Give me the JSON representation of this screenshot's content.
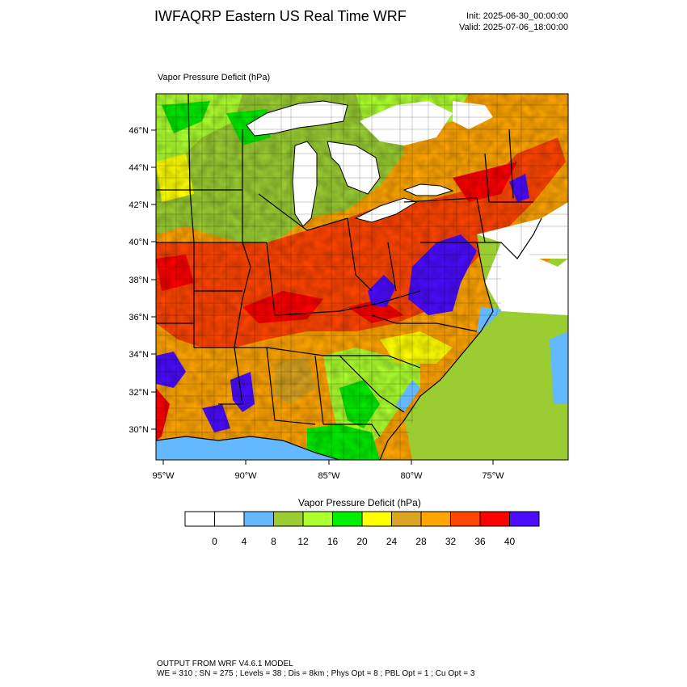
{
  "header": {
    "title": "IWFAQRP Eastern US Real Time WRF",
    "init": "Init: 2025-06-30_00:00:00",
    "valid": "Valid: 2025-07-06_18:00:00"
  },
  "map": {
    "field_title": "Vapor Pressure Deficit   (hPa)",
    "lat_labels": [
      "46°N",
      "44°N",
      "42°N",
      "40°N",
      "38°N",
      "36°N",
      "34°N",
      "32°N",
      "30°N"
    ],
    "lon_labels": [
      "95°W",
      "90°W",
      "85°W",
      "80°W",
      "75°W"
    ],
    "colors": {
      "lake": "#ffffff",
      "ocean": "#9acd32",
      "coast_water": "#63b8ff",
      "border": "#000000"
    }
  },
  "colorbar": {
    "title": "Vapor Pressure Deficit  (hPa)",
    "ticks": [
      "0",
      "4",
      "8",
      "12",
      "16",
      "20",
      "24",
      "28",
      "32",
      "36",
      "40"
    ],
    "colors": [
      "#ffffff",
      "#ffffff",
      "#63b8ff",
      "#9acd32",
      "#adff2f",
      "#00ee00",
      "#ffff00",
      "#daa520",
      "#ffa500",
      "#ff4500",
      "#ff0000",
      "#4b0cff"
    ]
  },
  "footer": {
    "line1": "OUTPUT FROM WRF V4.6.1 MODEL",
    "line2": "WE = 310 ; SN = 275 ; Levels = 38 ; Dis = 8km ; Phys Opt = 8 ; PBL Opt = 1 ; Cu Opt = 3"
  }
}
